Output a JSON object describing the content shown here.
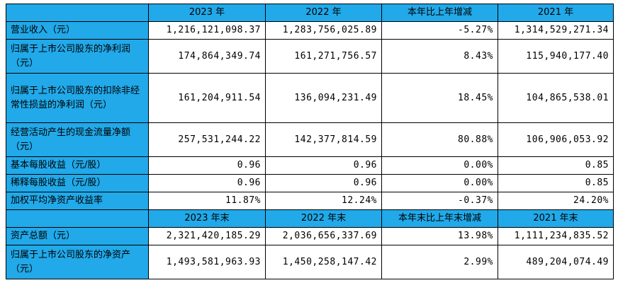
{
  "header1": [
    "2023 年",
    "2022 年",
    "本年比上年增减",
    "2021 年"
  ],
  "rows1": [
    {
      "label": "营业收入（元）",
      "values": [
        "1,216,121,098.37",
        "1,283,756,025.89",
        "-5.27%",
        "1,314,529,271.34"
      ]
    },
    {
      "label": "归属于上市公司股东的净利润（元）",
      "values": [
        "174,864,349.74",
        "161,271,756.57",
        "8.43%",
        "115,940,177.40"
      ]
    },
    {
      "label": "归属于上市公司股东的扣除非经常性损益的净利润（元）",
      "values": [
        "161,204,911.54",
        "136,094,231.49",
        "18.45%",
        "104,865,538.01"
      ]
    },
    {
      "label": "经营活动产生的现金流量净额（元）",
      "values": [
        "257,531,244.22",
        "142,377,814.59",
        "80.88%",
        "106,906,053.92"
      ]
    },
    {
      "label": "基本每股收益（元/股）",
      "values": [
        "0.96",
        "0.96",
        "0.00%",
        "0.85"
      ]
    },
    {
      "label": "稀释每股收益（元/股）",
      "values": [
        "0.96",
        "0.96",
        "0.00%",
        "0.85"
      ]
    },
    {
      "label": "加权平均净资产收益率",
      "values": [
        "11.87%",
        "12.24%",
        "-0.37%",
        "24.20%"
      ]
    }
  ],
  "header2": [
    "2023 年末",
    "2022 年末",
    "本年末比上年末增减",
    "2021 年末"
  ],
  "rows2": [
    {
      "label": "资产总额（元）",
      "values": [
        "2,321,420,185.29",
        "2,036,656,337.69",
        "13.98%",
        "1,111,234,835.52"
      ]
    },
    {
      "label": "归属于上市公司股东的净资产（元）",
      "values": [
        "1,493,581,963.93",
        "1,450,258,147.42",
        "2.99%",
        "489,204,074.49"
      ]
    }
  ]
}
